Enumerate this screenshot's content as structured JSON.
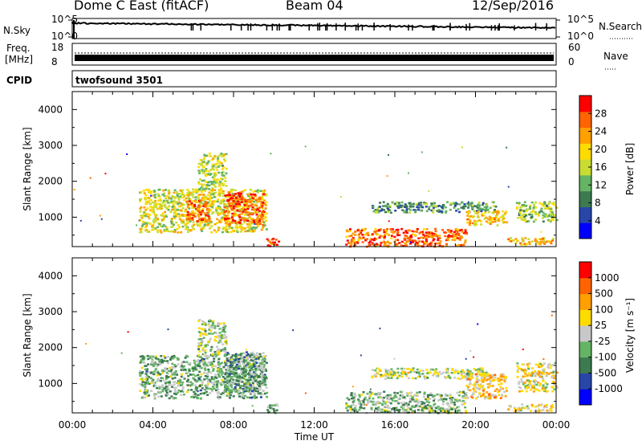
{
  "header": {
    "title": "Dome C East (fitACF)",
    "beam": "Beam 04",
    "date": "12/Sep/2016"
  },
  "strips": {
    "nsky_label": "N.Sky",
    "nsky_ticks": [
      "10^5",
      "10^0"
    ],
    "nsearch_label": "N.Search",
    "nsearch_ticks": [
      "10^5",
      "10^0"
    ],
    "freq_label_1": "Freq.",
    "freq_label_2": "[MHz]",
    "freq_ticks": [
      "18",
      "8"
    ],
    "nave_label": "Nave",
    "nave_ticks": [
      "60",
      "0"
    ],
    "cpid_label": "CPID",
    "cpid_text": "twofsound 3501"
  },
  "colors": {
    "power_scale": [
      "#0000ff",
      "#2846a8",
      "#3c7a50",
      "#64b464",
      "#c8dc32",
      "#ffdc00",
      "#ffa000",
      "#ff6400",
      "#ff0000"
    ],
    "velocity_scale": [
      "#0000ff",
      "#2846a8",
      "#3c7a50",
      "#64b464",
      "#c8c8c8",
      "#ffdc00",
      "#ffa000",
      "#ff6400",
      "#ff0000"
    ]
  },
  "chart_data": [
    {
      "type": "heatmap",
      "panel": "power",
      "xlabel": "",
      "ylabel": "Slant Range [km]",
      "xlim": [
        0,
        24
      ],
      "ylim": [
        180,
        4500
      ],
      "y_ticks": [
        1000,
        2000,
        3000,
        4000
      ],
      "colorbar_label": "Power [dB]",
      "colorbar_ticks": [
        "4",
        "8",
        "12",
        "16",
        "20",
        "24",
        "28"
      ],
      "colorbar_range": [
        0,
        32
      ],
      "regions": [
        {
          "t0": 3.3,
          "t1": 9.6,
          "r0": 600,
          "r1": 1800,
          "value": 18
        },
        {
          "t0": 7.5,
          "t1": 9.5,
          "r0": 800,
          "r1": 1700,
          "value": 27
        },
        {
          "t0": 5.6,
          "t1": 6.8,
          "r0": 900,
          "r1": 1500,
          "value": 26
        },
        {
          "t0": 6.2,
          "t1": 7.6,
          "r0": 1800,
          "r1": 2800,
          "value": 16
        },
        {
          "t0": 9.6,
          "t1": 10.2,
          "r0": 200,
          "r1": 450,
          "value": 29
        },
        {
          "t0": 13.5,
          "t1": 19.5,
          "r0": 200,
          "r1": 700,
          "value": 26
        },
        {
          "t0": 14.8,
          "t1": 21.0,
          "r0": 1150,
          "r1": 1450,
          "value": 10
        },
        {
          "t0": 19.5,
          "t1": 21.5,
          "r0": 800,
          "r1": 1200,
          "value": 20
        },
        {
          "t0": 22.0,
          "t1": 24.0,
          "r0": 900,
          "r1": 1450,
          "value": 15
        },
        {
          "t0": 21.5,
          "t1": 23.8,
          "r0": 250,
          "r1": 450,
          "value": 22
        }
      ]
    },
    {
      "type": "heatmap",
      "panel": "velocity",
      "xlabel": "Time UT",
      "ylabel": "Slant Range [km]",
      "xlim": [
        0,
        24
      ],
      "ylim": [
        180,
        4500
      ],
      "x_ticks": [
        "00:00",
        "04:00",
        "08:00",
        "12:00",
        "16:00",
        "20:00",
        "00:00"
      ],
      "y_ticks": [
        1000,
        2000,
        3000,
        4000
      ],
      "colorbar_label": "Velocity [m s⁻¹]",
      "colorbar_ticks": [
        "-1000",
        "-500",
        "-100",
        "-25",
        "25",
        "100",
        "500",
        "1000"
      ],
      "colorbar_range": [
        -1200,
        1200
      ],
      "regions": [
        {
          "t0": 3.3,
          "t1": 9.6,
          "r0": 600,
          "r1": 1800,
          "value": -250
        },
        {
          "t0": 7.5,
          "t1": 9.5,
          "r0": 800,
          "r1": 1900,
          "value": -350
        },
        {
          "t0": 6.2,
          "t1": 7.6,
          "r0": 1800,
          "r1": 2800,
          "value": -60
        },
        {
          "t0": 9.6,
          "t1": 10.2,
          "r0": 200,
          "r1": 450,
          "value": -200
        },
        {
          "t0": 13.5,
          "t1": 19.5,
          "r0": 200,
          "r1": 800,
          "value": -220
        },
        {
          "t0": 14.8,
          "t1": 20.5,
          "r0": 1150,
          "r1": 1450,
          "value": 0
        },
        {
          "t0": 19.5,
          "t1": 21.5,
          "r0": 600,
          "r1": 1300,
          "value": 300
        },
        {
          "t0": 22.0,
          "t1": 24.0,
          "r0": 800,
          "r1": 1600,
          "value": 150
        },
        {
          "t0": 21.5,
          "t1": 23.8,
          "r0": 250,
          "r1": 450,
          "value": 150
        }
      ]
    }
  ]
}
